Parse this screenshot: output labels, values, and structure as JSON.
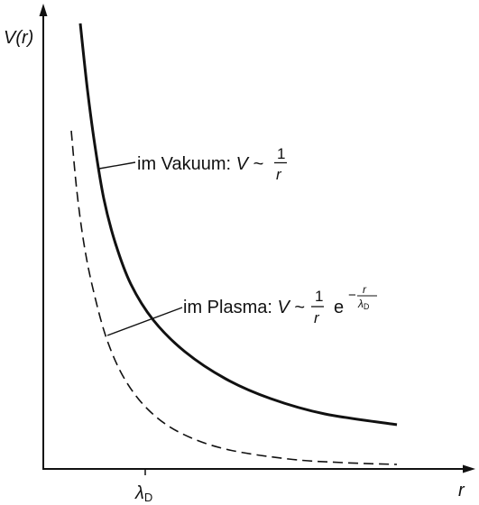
{
  "axes": {
    "y_label_prefix": "V(",
    "y_label_var": "r",
    "y_label_suffix": ")",
    "x_label": "r",
    "x_tick_symbol": "λ",
    "x_tick_subscript": "D"
  },
  "curves": {
    "vacuum": {
      "label_prefix": "im Vakuum: ",
      "label_var": "V",
      "label_tilde": "~",
      "frac_num": "1",
      "frac_den": "r",
      "style": "solid"
    },
    "plasma": {
      "label_prefix": "im Plasma: ",
      "label_var": "V",
      "label_tilde": "~",
      "frac_num": "1",
      "frac_den": "r",
      "exp_base": "e",
      "exp_sign": "−",
      "exp_num": "r",
      "exp_den_symbol": "λ",
      "exp_den_sub": "D",
      "style": "dashed"
    }
  },
  "colors": {
    "ink": "#111111",
    "background": "#ffffff"
  }
}
